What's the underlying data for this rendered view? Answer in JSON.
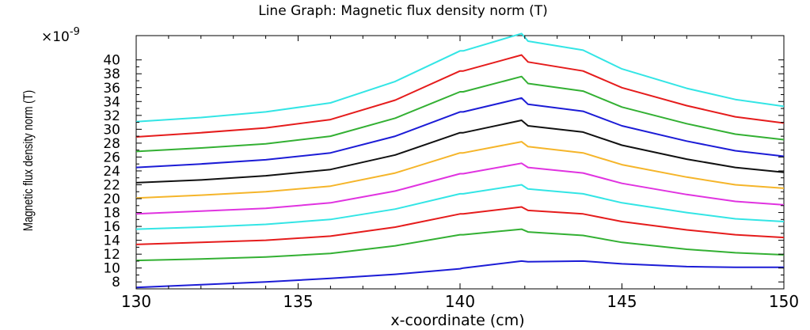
{
  "chart_data": {
    "type": "line",
    "title": "Line Graph: Magnetic flux density norm (T)",
    "xlabel": "x-coordinate (cm)",
    "ylabel": "Magnetic flux density norm (T)",
    "y_multiplier": {
      "base": "×10",
      "exponent": "-9"
    },
    "xlim": [
      130,
      150
    ],
    "ylim": [
      7,
      43.5
    ],
    "xticks": [
      130,
      135,
      140,
      145,
      150
    ],
    "yticks": [
      8,
      10,
      12,
      14,
      16,
      18,
      20,
      22,
      24,
      26,
      28,
      30,
      32,
      34,
      36,
      38,
      40
    ],
    "grid": false,
    "series": [
      {
        "color": "#1c1cd6",
        "x": [
          130,
          132,
          134,
          136,
          138,
          140,
          140.1,
          141.9,
          142.1,
          143.8,
          145,
          147,
          148.5,
          150
        ],
        "values": [
          7.2,
          7.6,
          8.0,
          8.5,
          9.1,
          9.9,
          10.0,
          11.0,
          10.9,
          11.0,
          10.6,
          10.2,
          10.1,
          10.1
        ]
      },
      {
        "color": "#33b033",
        "x": [
          130,
          132,
          134,
          136,
          138,
          140,
          140.1,
          141.9,
          142.1,
          143.8,
          145,
          147,
          148.5,
          150
        ],
        "values": [
          11.1,
          11.3,
          11.6,
          12.1,
          13.2,
          14.8,
          14.8,
          15.6,
          15.2,
          14.7,
          13.7,
          12.7,
          12.2,
          11.9
        ]
      },
      {
        "color": "#e51c1c",
        "x": [
          130,
          132,
          134,
          136,
          138,
          140,
          140.1,
          141.9,
          142.1,
          143.8,
          145,
          147,
          148.5,
          150
        ],
        "values": [
          13.4,
          13.7,
          14.0,
          14.6,
          15.9,
          17.8,
          17.8,
          18.8,
          18.3,
          17.8,
          16.7,
          15.5,
          14.8,
          14.4
        ]
      },
      {
        "color": "#33e5e5",
        "x": [
          130,
          132,
          134,
          136,
          138,
          140,
          140.1,
          141.9,
          142.1,
          143.8,
          145,
          147,
          148.5,
          150
        ],
        "values": [
          15.6,
          15.9,
          16.3,
          17.0,
          18.5,
          20.7,
          20.7,
          22.0,
          21.4,
          20.7,
          19.4,
          18.0,
          17.1,
          16.7
        ]
      },
      {
        "color": "#e033e0",
        "x": [
          130,
          132,
          134,
          136,
          138,
          140,
          140.1,
          141.9,
          142.1,
          143.8,
          145,
          147,
          148.5,
          150
        ],
        "values": [
          17.8,
          18.2,
          18.6,
          19.4,
          21.1,
          23.6,
          23.6,
          25.1,
          24.5,
          23.7,
          22.2,
          20.6,
          19.6,
          19.1
        ]
      },
      {
        "color": "#f5b52a",
        "x": [
          130,
          132,
          134,
          136,
          138,
          140,
          140.1,
          141.9,
          142.1,
          143.8,
          145,
          147,
          148.5,
          150
        ],
        "values": [
          20.1,
          20.5,
          21.0,
          21.8,
          23.7,
          26.6,
          26.6,
          28.2,
          27.5,
          26.6,
          24.9,
          23.1,
          22.0,
          21.5
        ]
      },
      {
        "color": "#111111",
        "x": [
          130,
          132,
          134,
          136,
          138,
          140,
          140.1,
          141.9,
          142.1,
          143.8,
          145,
          147,
          148.5,
          150
        ],
        "values": [
          22.3,
          22.7,
          23.3,
          24.2,
          26.3,
          29.5,
          29.5,
          31.3,
          30.5,
          29.6,
          27.7,
          25.7,
          24.5,
          23.8
        ]
      },
      {
        "color": "#1c1cd6",
        "x": [
          130,
          132,
          134,
          136,
          138,
          140,
          140.1,
          141.9,
          142.1,
          143.8,
          145,
          147,
          148.5,
          150
        ],
        "values": [
          24.5,
          25.0,
          25.6,
          26.6,
          29.0,
          32.5,
          32.5,
          34.5,
          33.6,
          32.6,
          30.5,
          28.3,
          26.9,
          26.1
        ]
      },
      {
        "color": "#33b033",
        "x": [
          130,
          132,
          134,
          136,
          138,
          140,
          140.1,
          141.9,
          142.1,
          143.8,
          145,
          147,
          148.5,
          150
        ],
        "values": [
          26.8,
          27.3,
          27.9,
          29.0,
          31.6,
          35.4,
          35.4,
          37.6,
          36.6,
          35.5,
          33.2,
          30.8,
          29.3,
          28.5
        ]
      },
      {
        "color": "#e51c1c",
        "x": [
          130,
          132,
          134,
          136,
          138,
          140,
          140.1,
          141.9,
          142.1,
          143.8,
          145,
          147,
          148.5,
          150
        ],
        "values": [
          28.9,
          29.5,
          30.2,
          31.4,
          34.2,
          38.4,
          38.4,
          40.7,
          39.7,
          38.4,
          36.0,
          33.4,
          31.8,
          30.9
        ]
      },
      {
        "color": "#33e5e5",
        "x": [
          130,
          132,
          134,
          136,
          138,
          140,
          140.1,
          141.9,
          142.1,
          143.8,
          145,
          147,
          148.5,
          150
        ],
        "values": [
          31.1,
          31.7,
          32.5,
          33.8,
          36.9,
          41.3,
          41.3,
          43.8,
          42.7,
          41.4,
          38.7,
          35.9,
          34.3,
          33.3
        ]
      }
    ]
  }
}
